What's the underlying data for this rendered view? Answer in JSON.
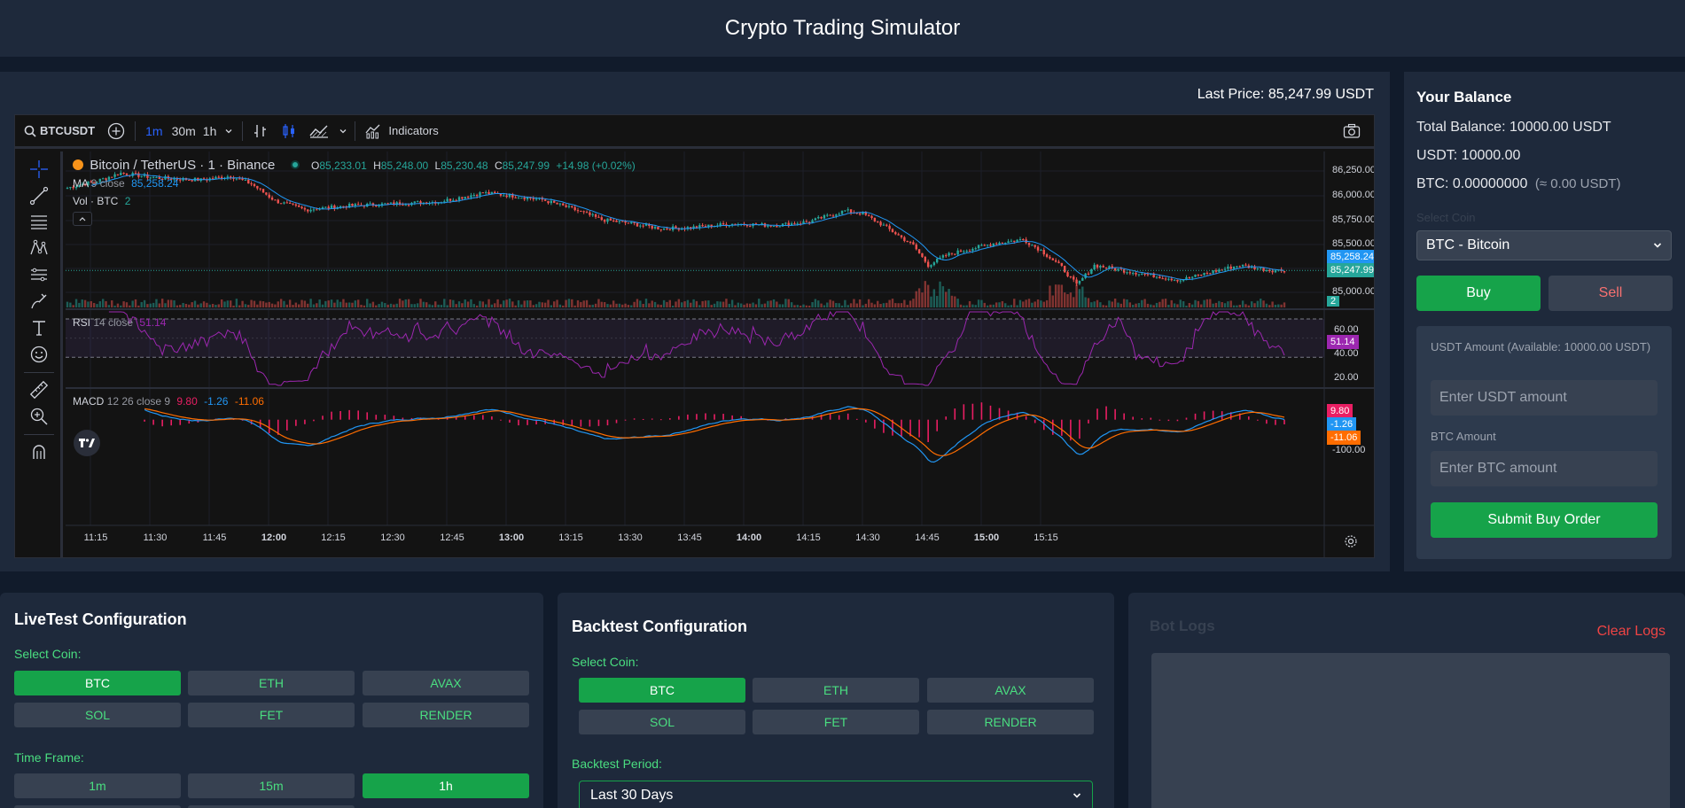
{
  "app": {
    "title": "Crypto Trading Simulator"
  },
  "chart": {
    "last_price_label": "Last Price: 85,247.99 USDT",
    "symbol": "BTCUSDT",
    "intervals": [
      "1m",
      "30m",
      "1h"
    ],
    "indicators_label": "Indicators",
    "legend_title": "Bitcoin / TetherUS · 1 · Binance",
    "ohlc": {
      "o_label": "O",
      "o": "85,233.01",
      "h_label": "H",
      "h": "85,248.00",
      "l_label": "L",
      "l": "85,230.48",
      "c_label": "C",
      "c": "85,247.99",
      "change": "+14.98 (+0.02%)"
    },
    "ma_label": "MA",
    "ma_params": "9 close",
    "ma_value": "85,258.24",
    "vol_label": "Vol · BTC",
    "vol_value": "2",
    "rsi_label": "RSI",
    "rsi_params": "14 close",
    "rsi_value": "51.14",
    "macd_label": "MACD",
    "macd_params": "12 26 close 9",
    "macd_values": [
      "9.80",
      "-1.26",
      "-11.06"
    ],
    "price_ticks": [
      "86,250.00",
      "86,000.00",
      "85,750.00",
      "85,500.00",
      "85,000.00"
    ],
    "price_tag_ma": "85,258.24",
    "price_tag_last": "85,247.99",
    "vol_tag": "2",
    "rsi_ticks": [
      "60.00",
      "40.00",
      "20.00"
    ],
    "rsi_tag": "51.14",
    "macd_tags": [
      "9.80",
      "-1.26",
      "-11.06"
    ],
    "macd_tick": "-100.00",
    "time_ticks": [
      "11:15",
      "11:30",
      "11:45",
      "12:00",
      "12:15",
      "12:30",
      "12:45",
      "13:00",
      "13:15",
      "13:30",
      "13:45",
      "14:00",
      "14:15",
      "14:30",
      "14:45",
      "15:00",
      "15:15"
    ],
    "colors": {
      "up": "#26a69a",
      "down": "#ef5350",
      "ma": "#2196f3",
      "rsi": "#9c27b0",
      "macd": "#2196f3",
      "signal": "#ff6d00",
      "hist": "#e91e63"
    }
  },
  "balance": {
    "title": "Your Balance",
    "total": "Total Balance: 10000.00 USDT",
    "usdt": "USDT: 10000.00",
    "btc": "BTC: 0.00000000",
    "btc_approx": "(≈ 0.00 USDT)",
    "select_label": "Select Coin",
    "selected_coin": "BTC - Bitcoin",
    "buy_label": "Buy",
    "sell_label": "Sell",
    "usdt_amount_label": "USDT Amount (Available: 10000.00 USDT)",
    "usdt_placeholder": "Enter USDT amount",
    "btc_amount_label": "BTC Amount",
    "btc_placeholder": "Enter BTC amount",
    "submit_label": "Submit Buy Order"
  },
  "livetest": {
    "title": "LiveTest Configuration",
    "coin_label": "Select Coin:",
    "coins": [
      "BTC",
      "ETH",
      "AVAX",
      "SOL",
      "FET",
      "RENDER"
    ],
    "timeframe_label": "Time Frame:",
    "timeframes": [
      "1m",
      "15m",
      "1h"
    ]
  },
  "backtest": {
    "title": "Backtest Configuration",
    "coin_label": "Select Coin:",
    "coins": [
      "BTC",
      "ETH",
      "AVAX",
      "SOL",
      "FET",
      "RENDER"
    ],
    "period_label": "Backtest Period:",
    "period_value": "Last 30 Days"
  },
  "logs": {
    "title": "Bot Logs",
    "clear_label": "Clear Logs"
  }
}
